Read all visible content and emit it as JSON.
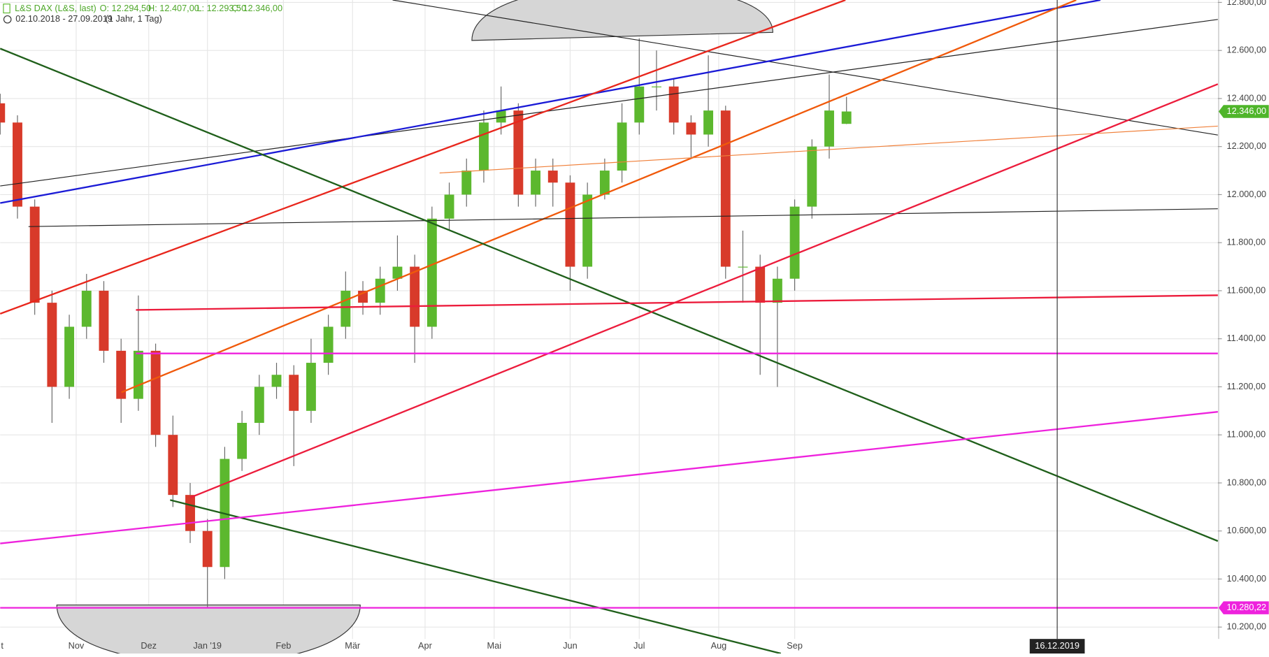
{
  "header": {
    "instrument": "L&S DAX (L&S, last)",
    "open": "O: 12.294,50",
    "high": "H: 12.407,00",
    "low": "L: 12.293,50",
    "close": "C: 12.346,00",
    "period": "02.10.2018 - 27.09.2019",
    "span": "(1 Jahr, 1 Tag)"
  },
  "chart_data": {
    "type": "candlestick",
    "x": [
      0,
      5,
      10,
      15,
      20,
      25,
      30,
      35,
      40,
      45,
      50,
      55,
      60,
      65,
      70,
      75,
      80,
      85,
      90,
      95,
      100,
      105,
      110,
      115,
      120,
      125,
      130,
      135,
      140,
      145,
      150,
      155,
      160,
      165,
      170,
      175,
      180,
      185,
      190,
      195,
      200,
      205,
      210,
      215,
      220,
      225,
      230,
      235,
      240,
      245
    ],
    "open": [
      12380,
      12300,
      11950,
      11550,
      11200,
      11450,
      11600,
      11350,
      11150,
      11350,
      11000,
      10750,
      10600,
      10450,
      10900,
      11050,
      11200,
      11250,
      11100,
      11300,
      11450,
      11600,
      11550,
      11650,
      11700,
      11450,
      11900,
      12000,
      12100,
      12300,
      12350,
      12000,
      12100,
      12050,
      11700,
      12000,
      12100,
      12300,
      12450,
      12450,
      12300,
      12250,
      12350,
      11700,
      11700,
      11550,
      11650,
      11950,
      12200,
      12294.5
    ],
    "high": [
      12420,
      12330,
      11980,
      11600,
      11500,
      11670,
      11640,
      11400,
      11580,
      11380,
      11080,
      10800,
      10650,
      10950,
      11100,
      11250,
      11300,
      11290,
      11400,
      11500,
      11680,
      11640,
      11700,
      11830,
      11750,
      11950,
      12050,
      12150,
      12350,
      12450,
      12380,
      12150,
      12150,
      12080,
      12050,
      12150,
      12380,
      12650,
      12600,
      12480,
      12330,
      12580,
      12370,
      11850,
      11750,
      11700,
      11980,
      12230,
      12500,
      12407
    ],
    "low": [
      12250,
      11900,
      11500,
      11050,
      11150,
      11400,
      11300,
      11050,
      11100,
      10950,
      10700,
      10550,
      10280,
      10400,
      10850,
      11000,
      11150,
      10870,
      11050,
      11250,
      11400,
      11500,
      11500,
      11600,
      11300,
      11400,
      11850,
      11950,
      12050,
      12250,
      11950,
      11950,
      11950,
      11600,
      11650,
      11980,
      12050,
      12250,
      12350,
      12250,
      12150,
      12200,
      11650,
      11550,
      11250,
      11200,
      11600,
      11900,
      12150,
      12293.5
    ],
    "close": [
      12300,
      11950,
      11550,
      11200,
      11450,
      11600,
      11350,
      11150,
      11350,
      11000,
      10750,
      10600,
      10450,
      10900,
      11050,
      11200,
      11250,
      11100,
      11300,
      11450,
      11600,
      11550,
      11650,
      11700,
      11450,
      11900,
      12000,
      12100,
      12300,
      12350,
      12000,
      12100,
      12050,
      11700,
      12000,
      12100,
      12300,
      12450,
      12450,
      12300,
      12250,
      12350,
      11700,
      11700,
      11550,
      11650,
      11950,
      12200,
      12350,
      12346
    ],
    "up_color": "#5cb82e",
    "down_color": "#d83a2a",
    "xlim": [
      0,
      352.5
    ],
    "ylim": [
      10090,
      12810
    ],
    "xticks": [
      {
        "value": 0,
        "label": "t"
      },
      {
        "value": 22,
        "label": "Nov"
      },
      {
        "value": 43,
        "label": "Dez"
      },
      {
        "value": 60,
        "label": "Jan '19"
      },
      {
        "value": 82,
        "label": "Feb"
      },
      {
        "value": 102,
        "label": "Mär"
      },
      {
        "value": 123,
        "label": "Apr"
      },
      {
        "value": 143,
        "label": "Mai"
      },
      {
        "value": 165,
        "label": "Jun"
      },
      {
        "value": 185,
        "label": "Jul"
      },
      {
        "value": 208,
        "label": "Aug"
      },
      {
        "value": 230,
        "label": "Sep"
      }
    ],
    "yticks": [
      {
        "value": 10200,
        "label": "10.200,00"
      },
      {
        "value": 10400,
        "label": "10.400,00"
      },
      {
        "value": 10600,
        "label": "10.600,00"
      },
      {
        "value": 10800,
        "label": "10.800,00"
      },
      {
        "value": 11000,
        "label": "11.000,00"
      },
      {
        "value": 11200,
        "label": "11.200,00"
      },
      {
        "value": 11400,
        "label": "11.400,00"
      },
      {
        "value": 11600,
        "label": "11.600,00"
      },
      {
        "value": 11800,
        "label": "11.800,00"
      },
      {
        "value": 12000,
        "label": "12.000,00"
      },
      {
        "value": 12200,
        "label": "12.200,00"
      },
      {
        "value": 12400,
        "label": "12.400,00"
      },
      {
        "value": 12600,
        "label": "12.600,00"
      },
      {
        "value": 12800,
        "label": "12.800,00"
      }
    ],
    "grid": true,
    "trendlines": [
      {
        "color": "#222222",
        "width": 1,
        "points": [
          [
            113.6,
            12810
          ],
          [
            352.5,
            12248
          ]
        ]
      },
      {
        "color": "#222222",
        "width": 1,
        "points": [
          [
            0,
            12036
          ],
          [
            352.5,
            12729
          ]
        ]
      },
      {
        "color": "#1a1ad6",
        "width": 2,
        "points": [
          [
            0,
            11965
          ],
          [
            318.5,
            12810
          ]
        ]
      },
      {
        "color": "#e8261c",
        "width": 2,
        "points": [
          [
            0,
            11504
          ],
          [
            244.7,
            12810
          ]
        ]
      },
      {
        "color": "#f0590a",
        "width": 2,
        "points": [
          [
            35.1,
            11177
          ],
          [
            311.5,
            12810
          ]
        ]
      },
      {
        "color": "#f0803a",
        "width": 1,
        "points": [
          [
            127.2,
            12090
          ],
          [
            352.5,
            12285
          ]
        ]
      },
      {
        "color": "#222222",
        "width": 1,
        "points": [
          [
            8.2,
            11867
          ],
          [
            352.5,
            11941
          ]
        ]
      },
      {
        "color": "#1f5f1a",
        "width": 2,
        "points": [
          [
            0,
            12608
          ],
          [
            352.5,
            10558
          ]
        ]
      },
      {
        "color": "#1f5f1a",
        "width": 2,
        "points": [
          [
            49.2,
            10729
          ],
          [
            226,
            10090
          ]
        ]
      },
      {
        "color": "#ec1c3c",
        "width": 2,
        "points": [
          [
            55,
            10739
          ],
          [
            352.5,
            12460
          ]
        ]
      },
      {
        "color": "#ec1c3c",
        "width": 2,
        "points": [
          [
            39.3,
            11520
          ],
          [
            352.5,
            11581
          ]
        ]
      },
      {
        "color": "#ee22dd",
        "width": 2,
        "points": [
          [
            39.3,
            11339
          ],
          [
            352.5,
            11339
          ]
        ]
      },
      {
        "color": "#ee22dd",
        "width": 2,
        "points": [
          [
            0,
            10548
          ],
          [
            352.5,
            11096
          ]
        ]
      },
      {
        "color": "#ee22dd",
        "width": 2,
        "points": [
          [
            0,
            10280.22
          ],
          [
            352.5,
            10280.22
          ]
        ]
      }
    ],
    "price_labels": [
      {
        "value": 12346,
        "label": "12.346,00",
        "color": "#4fb52a"
      },
      {
        "value": 10280.22,
        "label": "10.280,22",
        "color": "#ee22dd"
      }
    ],
    "vline": {
      "value": 306,
      "label": "16.12.2019"
    }
  }
}
